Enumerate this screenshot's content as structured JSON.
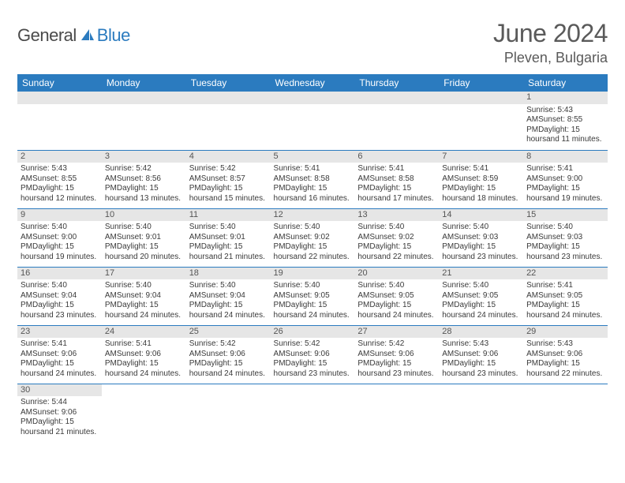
{
  "logo": {
    "text1": "General",
    "text2": "Blue"
  },
  "title": "June 2024",
  "location": "Pleven, Bulgaria",
  "colors": {
    "header_bg": "#2b7bbf",
    "header_text": "#ffffff",
    "daynum_bg": "#e6e6e6",
    "row_border": "#2b7bbf",
    "text": "#3a3a3a",
    "title_text": "#5a5a5a"
  },
  "day_headers": [
    "Sunday",
    "Monday",
    "Tuesday",
    "Wednesday",
    "Thursday",
    "Friday",
    "Saturday"
  ],
  "weeks": [
    [
      null,
      null,
      null,
      null,
      null,
      null,
      {
        "n": "1",
        "sr": "Sunrise: 5:43 AM",
        "ss": "Sunset: 8:55 PM",
        "d1": "Daylight: 15 hours",
        "d2": "and 11 minutes."
      }
    ],
    [
      {
        "n": "2",
        "sr": "Sunrise: 5:43 AM",
        "ss": "Sunset: 8:55 PM",
        "d1": "Daylight: 15 hours",
        "d2": "and 12 minutes."
      },
      {
        "n": "3",
        "sr": "Sunrise: 5:42 AM",
        "ss": "Sunset: 8:56 PM",
        "d1": "Daylight: 15 hours",
        "d2": "and 13 minutes."
      },
      {
        "n": "4",
        "sr": "Sunrise: 5:42 AM",
        "ss": "Sunset: 8:57 PM",
        "d1": "Daylight: 15 hours",
        "d2": "and 15 minutes."
      },
      {
        "n": "5",
        "sr": "Sunrise: 5:41 AM",
        "ss": "Sunset: 8:58 PM",
        "d1": "Daylight: 15 hours",
        "d2": "and 16 minutes."
      },
      {
        "n": "6",
        "sr": "Sunrise: 5:41 AM",
        "ss": "Sunset: 8:58 PM",
        "d1": "Daylight: 15 hours",
        "d2": "and 17 minutes."
      },
      {
        "n": "7",
        "sr": "Sunrise: 5:41 AM",
        "ss": "Sunset: 8:59 PM",
        "d1": "Daylight: 15 hours",
        "d2": "and 18 minutes."
      },
      {
        "n": "8",
        "sr": "Sunrise: 5:41 AM",
        "ss": "Sunset: 9:00 PM",
        "d1": "Daylight: 15 hours",
        "d2": "and 19 minutes."
      }
    ],
    [
      {
        "n": "9",
        "sr": "Sunrise: 5:40 AM",
        "ss": "Sunset: 9:00 PM",
        "d1": "Daylight: 15 hours",
        "d2": "and 19 minutes."
      },
      {
        "n": "10",
        "sr": "Sunrise: 5:40 AM",
        "ss": "Sunset: 9:01 PM",
        "d1": "Daylight: 15 hours",
        "d2": "and 20 minutes."
      },
      {
        "n": "11",
        "sr": "Sunrise: 5:40 AM",
        "ss": "Sunset: 9:01 PM",
        "d1": "Daylight: 15 hours",
        "d2": "and 21 minutes."
      },
      {
        "n": "12",
        "sr": "Sunrise: 5:40 AM",
        "ss": "Sunset: 9:02 PM",
        "d1": "Daylight: 15 hours",
        "d2": "and 22 minutes."
      },
      {
        "n": "13",
        "sr": "Sunrise: 5:40 AM",
        "ss": "Sunset: 9:02 PM",
        "d1": "Daylight: 15 hours",
        "d2": "and 22 minutes."
      },
      {
        "n": "14",
        "sr": "Sunrise: 5:40 AM",
        "ss": "Sunset: 9:03 PM",
        "d1": "Daylight: 15 hours",
        "d2": "and 23 minutes."
      },
      {
        "n": "15",
        "sr": "Sunrise: 5:40 AM",
        "ss": "Sunset: 9:03 PM",
        "d1": "Daylight: 15 hours",
        "d2": "and 23 minutes."
      }
    ],
    [
      {
        "n": "16",
        "sr": "Sunrise: 5:40 AM",
        "ss": "Sunset: 9:04 PM",
        "d1": "Daylight: 15 hours",
        "d2": "and 23 minutes."
      },
      {
        "n": "17",
        "sr": "Sunrise: 5:40 AM",
        "ss": "Sunset: 9:04 PM",
        "d1": "Daylight: 15 hours",
        "d2": "and 24 minutes."
      },
      {
        "n": "18",
        "sr": "Sunrise: 5:40 AM",
        "ss": "Sunset: 9:04 PM",
        "d1": "Daylight: 15 hours",
        "d2": "and 24 minutes."
      },
      {
        "n": "19",
        "sr": "Sunrise: 5:40 AM",
        "ss": "Sunset: 9:05 PM",
        "d1": "Daylight: 15 hours",
        "d2": "and 24 minutes."
      },
      {
        "n": "20",
        "sr": "Sunrise: 5:40 AM",
        "ss": "Sunset: 9:05 PM",
        "d1": "Daylight: 15 hours",
        "d2": "and 24 minutes."
      },
      {
        "n": "21",
        "sr": "Sunrise: 5:40 AM",
        "ss": "Sunset: 9:05 PM",
        "d1": "Daylight: 15 hours",
        "d2": "and 24 minutes."
      },
      {
        "n": "22",
        "sr": "Sunrise: 5:41 AM",
        "ss": "Sunset: 9:05 PM",
        "d1": "Daylight: 15 hours",
        "d2": "and 24 minutes."
      }
    ],
    [
      {
        "n": "23",
        "sr": "Sunrise: 5:41 AM",
        "ss": "Sunset: 9:06 PM",
        "d1": "Daylight: 15 hours",
        "d2": "and 24 minutes."
      },
      {
        "n": "24",
        "sr": "Sunrise: 5:41 AM",
        "ss": "Sunset: 9:06 PM",
        "d1": "Daylight: 15 hours",
        "d2": "and 24 minutes."
      },
      {
        "n": "25",
        "sr": "Sunrise: 5:42 AM",
        "ss": "Sunset: 9:06 PM",
        "d1": "Daylight: 15 hours",
        "d2": "and 24 minutes."
      },
      {
        "n": "26",
        "sr": "Sunrise: 5:42 AM",
        "ss": "Sunset: 9:06 PM",
        "d1": "Daylight: 15 hours",
        "d2": "and 23 minutes."
      },
      {
        "n": "27",
        "sr": "Sunrise: 5:42 AM",
        "ss": "Sunset: 9:06 PM",
        "d1": "Daylight: 15 hours",
        "d2": "and 23 minutes."
      },
      {
        "n": "28",
        "sr": "Sunrise: 5:43 AM",
        "ss": "Sunset: 9:06 PM",
        "d1": "Daylight: 15 hours",
        "d2": "and 23 minutes."
      },
      {
        "n": "29",
        "sr": "Sunrise: 5:43 AM",
        "ss": "Sunset: 9:06 PM",
        "d1": "Daylight: 15 hours",
        "d2": "and 22 minutes."
      }
    ],
    [
      {
        "n": "30",
        "sr": "Sunrise: 5:44 AM",
        "ss": "Sunset: 9:06 PM",
        "d1": "Daylight: 15 hours",
        "d2": "and 21 minutes."
      },
      null,
      null,
      null,
      null,
      null,
      null
    ]
  ]
}
